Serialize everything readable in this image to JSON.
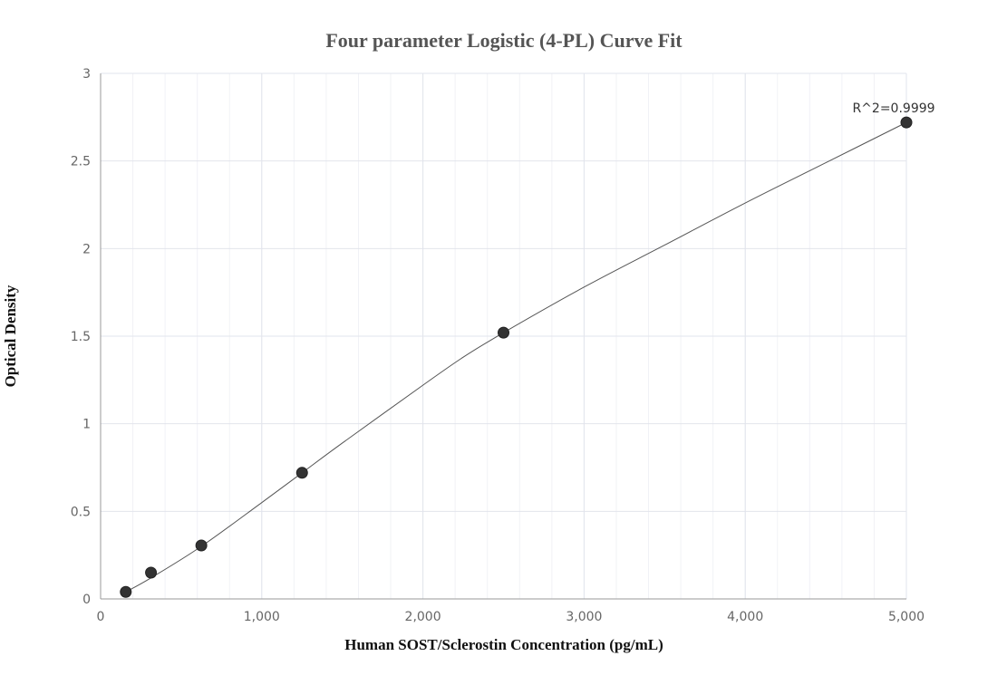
{
  "chart_data": {
    "type": "scatter",
    "title": "Four parameter Logistic (4-PL) Curve Fit",
    "xlabel": "Human SOST/Sclerostin Concentration (pg/mL)",
    "ylabel": "Optical Density",
    "xlim": [
      0,
      5000
    ],
    "ylim": [
      0,
      3
    ],
    "x_ticks": [
      0,
      1000,
      2000,
      3000,
      4000,
      5000
    ],
    "x_tick_labels": [
      "0",
      "1,000",
      "2,000",
      "3,000",
      "4,000",
      "5,000"
    ],
    "y_ticks": [
      0,
      0.5,
      1,
      1.5,
      2,
      2.5,
      3
    ],
    "y_tick_labels": [
      "0",
      "0.5",
      "1",
      "1.5",
      "2",
      "2.5",
      "3"
    ],
    "grid": true,
    "points": [
      {
        "x": 156.25,
        "y": 0.04
      },
      {
        "x": 312.5,
        "y": 0.15
      },
      {
        "x": 625,
        "y": 0.305
      },
      {
        "x": 1250,
        "y": 0.72
      },
      {
        "x": 2500,
        "y": 1.52
      },
      {
        "x": 5000,
        "y": 2.72
      }
    ],
    "fit_curve": [
      {
        "x": 156.25,
        "y": 0.04
      },
      {
        "x": 312.5,
        "y": 0.12
      },
      {
        "x": 625,
        "y": 0.3
      },
      {
        "x": 1000,
        "y": 0.55
      },
      {
        "x": 1250,
        "y": 0.72
      },
      {
        "x": 1500,
        "y": 0.89
      },
      {
        "x": 2000,
        "y": 1.22
      },
      {
        "x": 2250,
        "y": 1.38
      },
      {
        "x": 2500,
        "y": 1.52
      },
      {
        "x": 3000,
        "y": 1.78
      },
      {
        "x": 3500,
        "y": 2.02
      },
      {
        "x": 4000,
        "y": 2.26
      },
      {
        "x": 4500,
        "y": 2.49
      },
      {
        "x": 5000,
        "y": 2.72
      }
    ],
    "annotation": {
      "text": "R^2=0.9999",
      "x": 5000,
      "y": 2.72
    }
  }
}
